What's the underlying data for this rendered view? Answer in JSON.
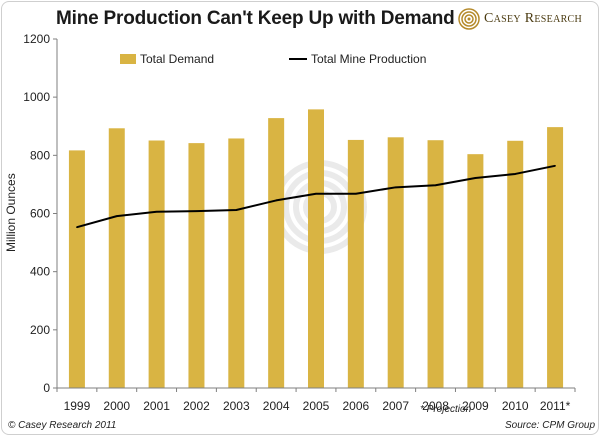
{
  "header": {
    "title": "Mine Production Can't Keep Up with Demand",
    "brand": "Casey Research",
    "brand_icon": "casey-research-logo-icon"
  },
  "footer": {
    "copyright": "© Casey Research 2011",
    "projection_note": "* Projection",
    "source": "Source: CPM Group"
  },
  "colors": {
    "bar": "#D9B443",
    "line": "#000000",
    "axis": "#7f7f7f",
    "watermark": "#d9d9d9"
  },
  "chart_data": {
    "type": "bar",
    "categories": [
      "1999",
      "2000",
      "2001",
      "2002",
      "2003",
      "2004",
      "2005",
      "2006",
      "2007",
      "2008",
      "2009",
      "2010",
      "2011*"
    ],
    "series": [
      {
        "name": "Total Demand",
        "type": "bar",
        "values": [
          817,
          893,
          851,
          842,
          858,
          928,
          958,
          853,
          862,
          852,
          804,
          850,
          897
        ]
      },
      {
        "name": "Total Mine Production",
        "type": "line",
        "values": [
          553,
          591,
          606,
          608,
          612,
          645,
          668,
          668,
          690,
          697,
          722,
          736,
          764
        ]
      }
    ],
    "title": "Mine Production Can't Keep Up with Demand",
    "xlabel": "",
    "ylabel": "Million Ounces",
    "ylim": [
      0,
      1200
    ],
    "yticks": [
      0,
      200,
      400,
      600,
      800,
      1000,
      1200
    ],
    "grid": false,
    "legend": "top"
  }
}
